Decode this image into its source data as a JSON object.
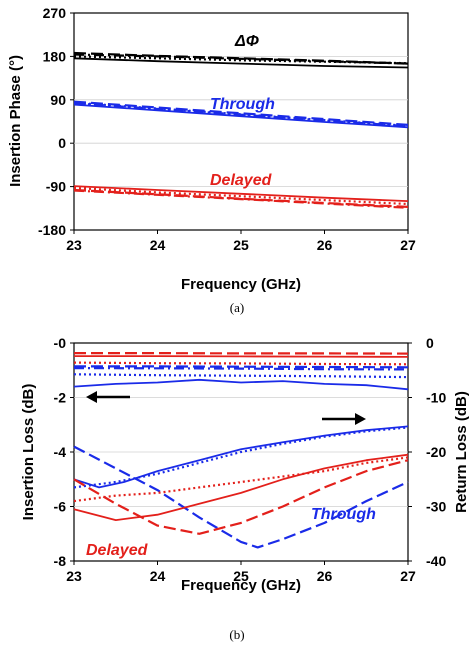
{
  "chart_data": [
    {
      "panel": "a",
      "caption": "(a)",
      "type": "line",
      "xlabel": "Frequency (GHz)",
      "ylabel": "Insertion Phase (°)",
      "xlim": [
        23,
        27
      ],
      "ylim": [
        -180,
        270
      ],
      "xticks": [
        "23",
        "24",
        "25",
        "26",
        "27"
      ],
      "yticks": [
        "270",
        "180",
        "90",
        "0",
        "-90",
        "-180"
      ],
      "annotations": [
        {
          "text": "ΔΦ",
          "color": "#000000"
        },
        {
          "text": "Through",
          "color": "#1a2be8"
        },
        {
          "text": "Delayed",
          "color": "#e3201b"
        }
      ],
      "series": [
        {
          "group": "ΔΦ",
          "style": "solid",
          "color": "#000000",
          "x": [
            23,
            24,
            25,
            26,
            27
          ],
          "values": [
            176,
            170,
            165,
            160,
            157
          ]
        },
        {
          "group": "ΔΦ",
          "style": "dotted",
          "color": "#000000",
          "x": [
            23,
            24,
            25,
            26,
            27
          ],
          "values": [
            180,
            176,
            172,
            169,
            166
          ]
        },
        {
          "group": "ΔΦ",
          "style": "dashed",
          "color": "#000000",
          "x": [
            23,
            24,
            25,
            26,
            27
          ],
          "values": [
            187,
            181,
            176,
            171,
            165
          ]
        },
        {
          "group": "ΔΦ",
          "style": "dashdot",
          "color": "#000000",
          "x": [
            23,
            24,
            25,
            26,
            27
          ],
          "values": [
            184,
            180,
            175,
            170,
            165
          ]
        },
        {
          "group": "Through",
          "style": "solid",
          "color": "#1a2be8",
          "x": [
            23,
            24,
            25,
            26,
            27
          ],
          "values": [
            80,
            68,
            56,
            44,
            33
          ]
        },
        {
          "group": "Through",
          "style": "dotted",
          "color": "#1a2be8",
          "x": [
            23,
            24,
            25,
            26,
            27
          ],
          "values": [
            84,
            72,
            60,
            48,
            36
          ]
        },
        {
          "group": "Through",
          "style": "dashed",
          "color": "#1a2be8",
          "x": [
            23,
            24,
            25,
            26,
            27
          ],
          "values": [
            86,
            74,
            62,
            50,
            38
          ]
        },
        {
          "group": "Through",
          "style": "dashdot",
          "color": "#1a2be8",
          "x": [
            23,
            24,
            25,
            26,
            27
          ],
          "values": [
            83,
            71,
            59,
            47,
            35
          ]
        },
        {
          "group": "Delayed",
          "style": "solid",
          "color": "#e3201b",
          "x": [
            23,
            24,
            25,
            26,
            27
          ],
          "values": [
            -89,
            -97,
            -105,
            -113,
            -120
          ]
        },
        {
          "group": "Delayed",
          "style": "dotted",
          "color": "#e3201b",
          "x": [
            23,
            24,
            25,
            26,
            27
          ],
          "values": [
            -93,
            -102,
            -110,
            -118,
            -126
          ]
        },
        {
          "group": "Delayed",
          "style": "dashed",
          "color": "#e3201b",
          "x": [
            23,
            24,
            25,
            26,
            27
          ],
          "values": [
            -97,
            -106,
            -115,
            -124,
            -132
          ]
        },
        {
          "group": "Delayed",
          "style": "dashdot",
          "color": "#e3201b",
          "x": [
            23,
            24,
            25,
            26,
            27
          ],
          "values": [
            -98,
            -107,
            -116,
            -125,
            -134
          ]
        }
      ]
    },
    {
      "panel": "b",
      "caption": "(b)",
      "type": "line",
      "xlabel": "Frequency (GHz)",
      "ylabel": "Insertion Loss (dB)",
      "y2label": "Return Loss (dB)",
      "xlim": [
        23,
        27
      ],
      "ylim": [
        -8,
        0
      ],
      "y2lim": [
        -40,
        0
      ],
      "xticks": [
        "23",
        "24",
        "25",
        "26",
        "27"
      ],
      "yticks": [
        "-0",
        "-2",
        "-4",
        "-6",
        "-8"
      ],
      "y2ticks": [
        "0",
        "-10",
        "-20",
        "-30",
        "-40"
      ],
      "annotations": [
        {
          "text": "Delayed",
          "color": "#e3201b"
        },
        {
          "text": "Through",
          "color": "#1a2be8"
        }
      ],
      "arrows": [
        {
          "direction": "left",
          "meaning": "left axis (Insertion Loss)"
        },
        {
          "direction": "right",
          "meaning": "right axis (Return Loss)"
        }
      ],
      "series": [
        {
          "group": "Delayed",
          "axis": "left",
          "style": "dashed",
          "color": "#e3201b",
          "x": [
            23,
            24,
            25,
            26,
            27
          ],
          "values": [
            -0.37,
            -0.37,
            -0.38,
            -0.38,
            -0.39
          ]
        },
        {
          "group": "Delayed",
          "axis": "left",
          "style": "solid",
          "color": "#e3201b",
          "x": [
            23,
            24,
            25,
            26,
            27
          ],
          "values": [
            -0.48,
            -0.48,
            -0.49,
            -0.5,
            -0.51
          ]
        },
        {
          "group": "Delayed",
          "axis": "left",
          "style": "dotted",
          "color": "#e3201b",
          "x": [
            23,
            24,
            25,
            26,
            27
          ],
          "values": [
            -0.72,
            -0.74,
            -0.75,
            -0.77,
            -0.78
          ]
        },
        {
          "group": "Through",
          "axis": "left",
          "style": "dashed",
          "color": "#1a2be8",
          "x": [
            23,
            24,
            25,
            26,
            27
          ],
          "values": [
            -0.86,
            -0.86,
            -0.87,
            -0.88,
            -0.89
          ]
        },
        {
          "group": "Through",
          "axis": "left",
          "style": "dashdot",
          "color": "#1a2be8",
          "x": [
            23,
            24,
            25,
            26,
            27
          ],
          "values": [
            -0.92,
            -0.93,
            -0.94,
            -0.96,
            -0.97
          ]
        },
        {
          "group": "Through",
          "axis": "left",
          "style": "dotted",
          "color": "#1a2be8",
          "x": [
            23,
            24,
            25,
            26,
            27
          ],
          "values": [
            -1.15,
            -1.18,
            -1.2,
            -1.22,
            -1.25
          ]
        },
        {
          "group": "Through",
          "axis": "left",
          "style": "solid",
          "color": "#1a2be8",
          "x": [
            23,
            23.5,
            24,
            24.5,
            25,
            25.5,
            26,
            26.5,
            27
          ],
          "values": [
            -1.6,
            -1.5,
            -1.45,
            -1.35,
            -1.45,
            -1.4,
            -1.5,
            -1.55,
            -1.7
          ]
        },
        {
          "group": "Through",
          "axis": "right",
          "style": "solid",
          "color": "#1a2be8",
          "x": [
            23,
            23.3,
            23.6,
            24,
            24.5,
            25,
            25.5,
            26,
            26.5,
            27
          ],
          "values": [
            -25,
            -26.5,
            -25.5,
            -23.5,
            -21.5,
            -19.5,
            -18.2,
            -17,
            -16,
            -15.3
          ]
        },
        {
          "group": "Through",
          "axis": "right",
          "style": "dotted",
          "color": "#1a2be8",
          "x": [
            23,
            23.5,
            24,
            24.5,
            25,
            25.5,
            26,
            26.5,
            27
          ],
          "values": [
            -26.5,
            -25.5,
            -24,
            -22,
            -20,
            -18.5,
            -17.2,
            -16.2,
            -15.5
          ]
        },
        {
          "group": "Through",
          "axis": "right",
          "style": "dashed",
          "color": "#1a2be8",
          "x": [
            23,
            23.5,
            24,
            24.5,
            25,
            25.2,
            25.5,
            26,
            26.5,
            27
          ],
          "values": [
            -19,
            -23,
            -27,
            -32,
            -36.5,
            -37.5,
            -36,
            -33,
            -29,
            -25.5
          ]
        },
        {
          "group": "Delayed",
          "axis": "right",
          "style": "solid",
          "color": "#e3201b",
          "x": [
            23,
            23.5,
            24,
            24.5,
            25,
            25.5,
            26,
            26.5,
            27
          ],
          "values": [
            -30.5,
            -32.5,
            -31.5,
            -29.5,
            -27.5,
            -25,
            -23,
            -21.5,
            -20.5
          ]
        },
        {
          "group": "Delayed",
          "axis": "right",
          "style": "dotted",
          "color": "#e3201b",
          "x": [
            23,
            23.5,
            24,
            24.5,
            25,
            25.5,
            26,
            26.5,
            27
          ],
          "values": [
            -29,
            -28,
            -27.5,
            -26.5,
            -25.5,
            -24.5,
            -23.5,
            -22,
            -21
          ]
        },
        {
          "group": "Delayed",
          "axis": "right",
          "style": "dashed",
          "color": "#e3201b",
          "x": [
            23,
            23.5,
            24,
            24.5,
            25,
            25.5,
            26,
            26.5,
            27
          ],
          "values": [
            -25,
            -29.5,
            -33.5,
            -35,
            -33,
            -30,
            -26.5,
            -23.5,
            -21.5
          ]
        }
      ]
    }
  ]
}
